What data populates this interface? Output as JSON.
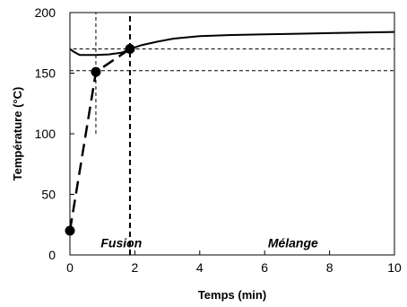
{
  "chart_data": {
    "type": "line",
    "xlabel": "Temps (min)",
    "ylabel": "Température (°C)",
    "xlim": [
      0,
      10
    ],
    "ylim": [
      0,
      200
    ],
    "x_ticks": [
      0,
      2,
      4,
      6,
      8,
      10
    ],
    "y_ticks": [
      0,
      50,
      100,
      150,
      200
    ],
    "x_tick_labels": [
      "0",
      "2",
      "4",
      "6",
      "8",
      "10"
    ],
    "y_tick_labels": [
      "0",
      "50",
      "100",
      "150",
      "200"
    ],
    "grid": false,
    "legend": "none",
    "series": [
      {
        "style": "solid",
        "color": "#000000",
        "points": [
          [
            0,
            170
          ],
          [
            0.1,
            168
          ],
          [
            0.3,
            165
          ],
          [
            0.5,
            165
          ],
          [
            0.8,
            165
          ],
          [
            1.2,
            165.5
          ],
          [
            1.6,
            167
          ],
          [
            1.85,
            170
          ],
          [
            2.2,
            173
          ],
          [
            2.7,
            176
          ],
          [
            3.2,
            178.5
          ],
          [
            4,
            180.5
          ],
          [
            5,
            181.5
          ],
          [
            6,
            182
          ],
          [
            7,
            182.5
          ],
          [
            8,
            183
          ],
          [
            9,
            183.5
          ],
          [
            10,
            184
          ]
        ]
      },
      {
        "style": "dashed",
        "marker": "circle",
        "color": "#000000",
        "points": [
          [
            0,
            20
          ],
          [
            0.8,
            151
          ],
          [
            1.85,
            170
          ]
        ]
      }
    ],
    "reference_lines": [
      {
        "axis": "y",
        "value": 170,
        "style": "dashed-thin",
        "x_from": 0.1
      },
      {
        "axis": "y",
        "value": 152,
        "style": "dashed-thin",
        "x_from": 0
      },
      {
        "axis": "x",
        "value": 0.8,
        "style": "dashed-thin",
        "y_from": 100,
        "y_to": 200
      },
      {
        "axis": "x",
        "value": 1.85,
        "style": "dashed-bold",
        "y_from": 0,
        "y_to": 200
      }
    ],
    "annotations": [
      {
        "text": "Fusion",
        "x": 0.95,
        "y": 10
      },
      {
        "text": "Mélange",
        "x": 6.1,
        "y": 10
      }
    ]
  }
}
